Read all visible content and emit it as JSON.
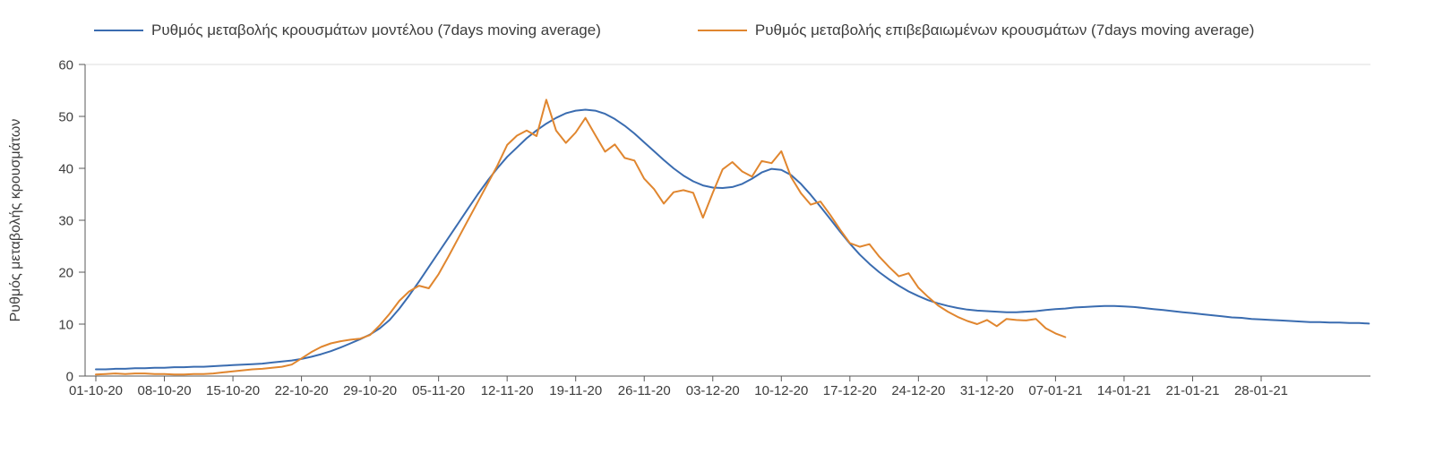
{
  "chart_data": {
    "type": "line",
    "title": "",
    "xlabel": "",
    "ylabel": "Ρυθμός μεταβολής κρουσμάτων",
    "ylim": [
      0,
      60
    ],
    "yticks": [
      0,
      10,
      20,
      30,
      40,
      50,
      60
    ],
    "grid": "top-border-only",
    "legend_position": "top",
    "x_tick_labels": [
      "01-10-20",
      "08-10-20",
      "15-10-20",
      "22-10-20",
      "29-10-20",
      "05-11-20",
      "12-11-20",
      "19-11-20",
      "26-11-20",
      "03-12-20",
      "10-12-20",
      "17-12-20",
      "24-12-20",
      "31-12-20",
      "07-01-21",
      "14-01-21",
      "21-01-21",
      "28-01-21"
    ],
    "x_tick_days": [
      0,
      7,
      14,
      21,
      28,
      35,
      42,
      49,
      56,
      63,
      70,
      77,
      84,
      91,
      98,
      105,
      112,
      119
    ],
    "x_unit": "day",
    "x_total_days": 130,
    "series": [
      {
        "id": "model-series",
        "name": "Ρυθμός μεταβολής κρουσμάτων μοντέλου (7days moving average)",
        "color": "#3a6cb0",
        "start_day": 0,
        "values": [
          1.3,
          1.3,
          1.4,
          1.4,
          1.5,
          1.5,
          1.6,
          1.6,
          1.7,
          1.7,
          1.8,
          1.8,
          1.9,
          2.0,
          2.1,
          2.2,
          2.3,
          2.4,
          2.6,
          2.8,
          3.0,
          3.3,
          3.7,
          4.2,
          4.8,
          5.5,
          6.3,
          7.1,
          8.0,
          9.2,
          10.8,
          13.0,
          15.5,
          18.2,
          21.0,
          23.8,
          26.6,
          29.4,
          32.2,
          35.0,
          37.6,
          40.0,
          42.2,
          44.0,
          45.8,
          47.3,
          48.6,
          49.7,
          50.6,
          51.1,
          51.3,
          51.1,
          50.5,
          49.5,
          48.2,
          46.7,
          45.0,
          43.3,
          41.6,
          40.0,
          38.6,
          37.5,
          36.7,
          36.3,
          36.2,
          36.4,
          37.0,
          38.0,
          39.2,
          39.9,
          39.7,
          38.7,
          37.0,
          34.9,
          32.6,
          30.2,
          27.8,
          25.5,
          23.4,
          21.6,
          20.0,
          18.6,
          17.4,
          16.3,
          15.4,
          14.6,
          14.0,
          13.5,
          13.1,
          12.8,
          12.6,
          12.5,
          12.4,
          12.3,
          12.3,
          12.4,
          12.5,
          12.7,
          12.9,
          13.0,
          13.2,
          13.3,
          13.4,
          13.5,
          13.5,
          13.4,
          13.3,
          13.1,
          12.9,
          12.7,
          12.5,
          12.3,
          12.1,
          11.9,
          11.7,
          11.5,
          11.3,
          11.2,
          11.0,
          10.9,
          10.8,
          10.7,
          10.6,
          10.5,
          10.4,
          10.4,
          10.3,
          10.3,
          10.2,
          10.2,
          10.1
        ]
      },
      {
        "id": "confirmed-series",
        "name": "Ρυθμός μεταβολής επιβεβαιωμένων κρουσμάτων (7days moving average)",
        "color": "#e0862f",
        "start_day": 0,
        "values": [
          0.3,
          0.4,
          0.5,
          0.4,
          0.5,
          0.5,
          0.4,
          0.4,
          0.3,
          0.3,
          0.4,
          0.4,
          0.5,
          0.7,
          0.9,
          1.1,
          1.3,
          1.4,
          1.6,
          1.8,
          2.2,
          3.4,
          4.6,
          5.6,
          6.3,
          6.7,
          7.0,
          7.2,
          7.9,
          9.8,
          12.0,
          14.5,
          16.3,
          17.4,
          16.9,
          19.6,
          23.0,
          26.5,
          30.0,
          33.5,
          37.0,
          40.5,
          44.5,
          46.3,
          47.3,
          46.2,
          53.2,
          47.3,
          44.9,
          46.9,
          49.7,
          46.4,
          43.2,
          44.6,
          42.0,
          41.5,
          38.0,
          36.0,
          33.2,
          35.4,
          35.8,
          35.3,
          30.5,
          35.3,
          39.8,
          41.2,
          39.4,
          38.4,
          41.4,
          41.0,
          43.3,
          38.3,
          35.2,
          33.0,
          33.6,
          31.0,
          28.2,
          25.6,
          24.9,
          25.4,
          23.0,
          21.0,
          19.2,
          19.8,
          17.0,
          15.2,
          13.6,
          12.4,
          11.4,
          10.6,
          10.0,
          10.8,
          9.6,
          11.0,
          10.8,
          10.7,
          11.0,
          9.2,
          8.2,
          7.5
        ]
      }
    ]
  }
}
